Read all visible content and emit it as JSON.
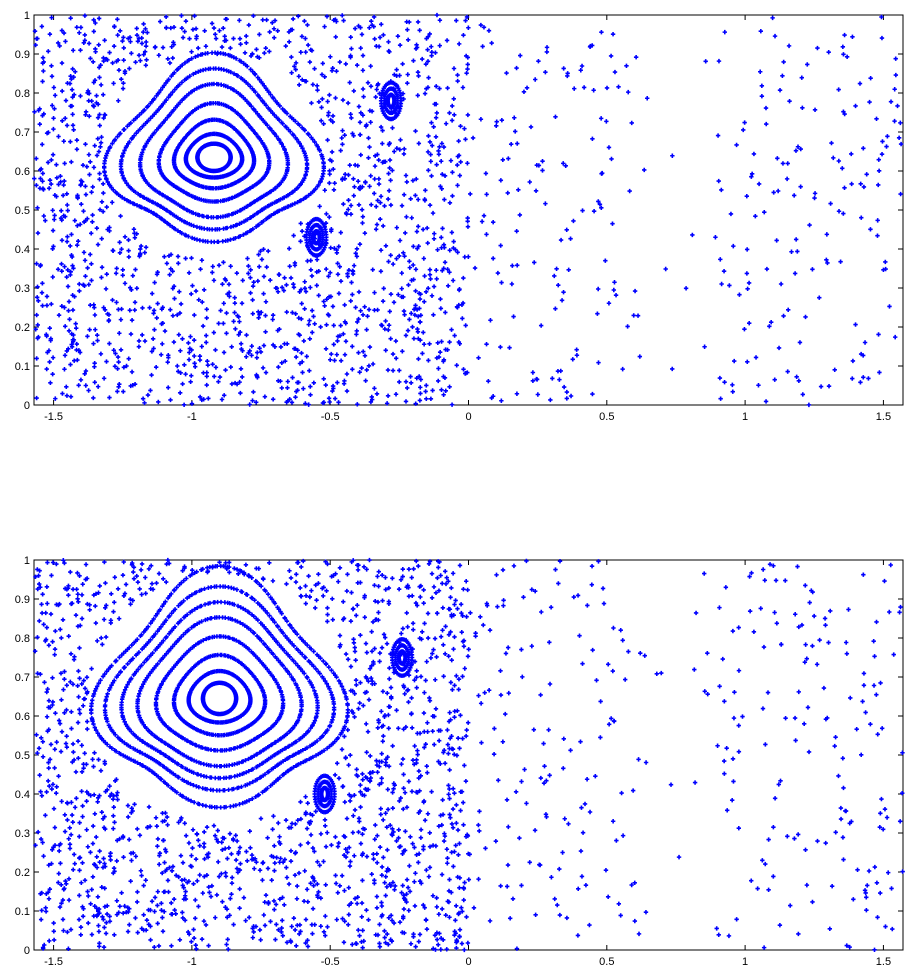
{
  "chart_data": [
    {
      "type": "scatter",
      "title": "",
      "xlabel": "",
      "ylabel": "",
      "xlim": [
        -1.5708,
        1.5708
      ],
      "ylim": [
        0,
        1
      ],
      "x_ticks": [
        "-1.5",
        "-1",
        "-0.5",
        "0",
        "0.5",
        "1",
        "1.5"
      ],
      "y_ticks": [
        "0",
        "0.1",
        "0.2",
        "0.3",
        "0.4",
        "0.5",
        "0.6",
        "0.7",
        "0.8",
        "0.9",
        "1"
      ],
      "marker": "+",
      "color": "#0000ff",
      "grid": false,
      "structure": {
        "island_center": [
          -0.92,
          0.635
        ],
        "island_rings_rx": [
          0.06,
          0.1,
          0.14,
          0.19,
          0.25,
          0.31,
          0.36
        ],
        "island_rings_ry": [
          0.035,
          0.055,
          0.085,
          0.12,
          0.16,
          0.19,
          0.22
        ],
        "secondary_islands": [
          [
            -0.55,
            0.43
          ],
          [
            -0.28,
            0.78
          ]
        ],
        "chaotic_sea_left": {
          "x_range": [
            -1.57,
            0.0
          ],
          "y_range": [
            0.0,
            1.0
          ]
        },
        "chaotic_sea_right": {
          "x_range": [
            0.0,
            1.57
          ],
          "y_range": [
            0.0,
            1.0
          ]
        }
      }
    },
    {
      "type": "scatter",
      "title": "",
      "xlabel": "",
      "ylabel": "",
      "xlim": [
        -1.5708,
        1.5708
      ],
      "ylim": [
        0,
        1
      ],
      "x_ticks": [
        "-1.5",
        "-1",
        "-0.5",
        "0",
        "0.5",
        "1",
        "1.5"
      ],
      "y_ticks": [
        "0",
        "0.1",
        "0.2",
        "0.3",
        "0.4",
        "0.5",
        "0.6",
        "0.7",
        "0.8",
        "0.9",
        "1"
      ],
      "marker": "+",
      "color": "#0000ff",
      "grid": false,
      "structure": {
        "island_center": [
          -0.9,
          0.645
        ],
        "island_rings_rx": [
          0.06,
          0.11,
          0.16,
          0.22,
          0.28,
          0.33,
          0.38,
          0.42
        ],
        "island_rings_ry": [
          0.04,
          0.065,
          0.1,
          0.14,
          0.18,
          0.21,
          0.24,
          0.28
        ],
        "secondary_islands": [
          [
            -0.52,
            0.4
          ],
          [
            -0.24,
            0.75
          ]
        ],
        "chaotic_sea_left": {
          "x_range": [
            -1.57,
            0.0
          ],
          "y_range": [
            0.0,
            1.0
          ]
        },
        "chaotic_sea_right": {
          "x_range": [
            0.0,
            1.57
          ],
          "y_range": [
            0.0,
            1.0
          ]
        }
      }
    }
  ]
}
